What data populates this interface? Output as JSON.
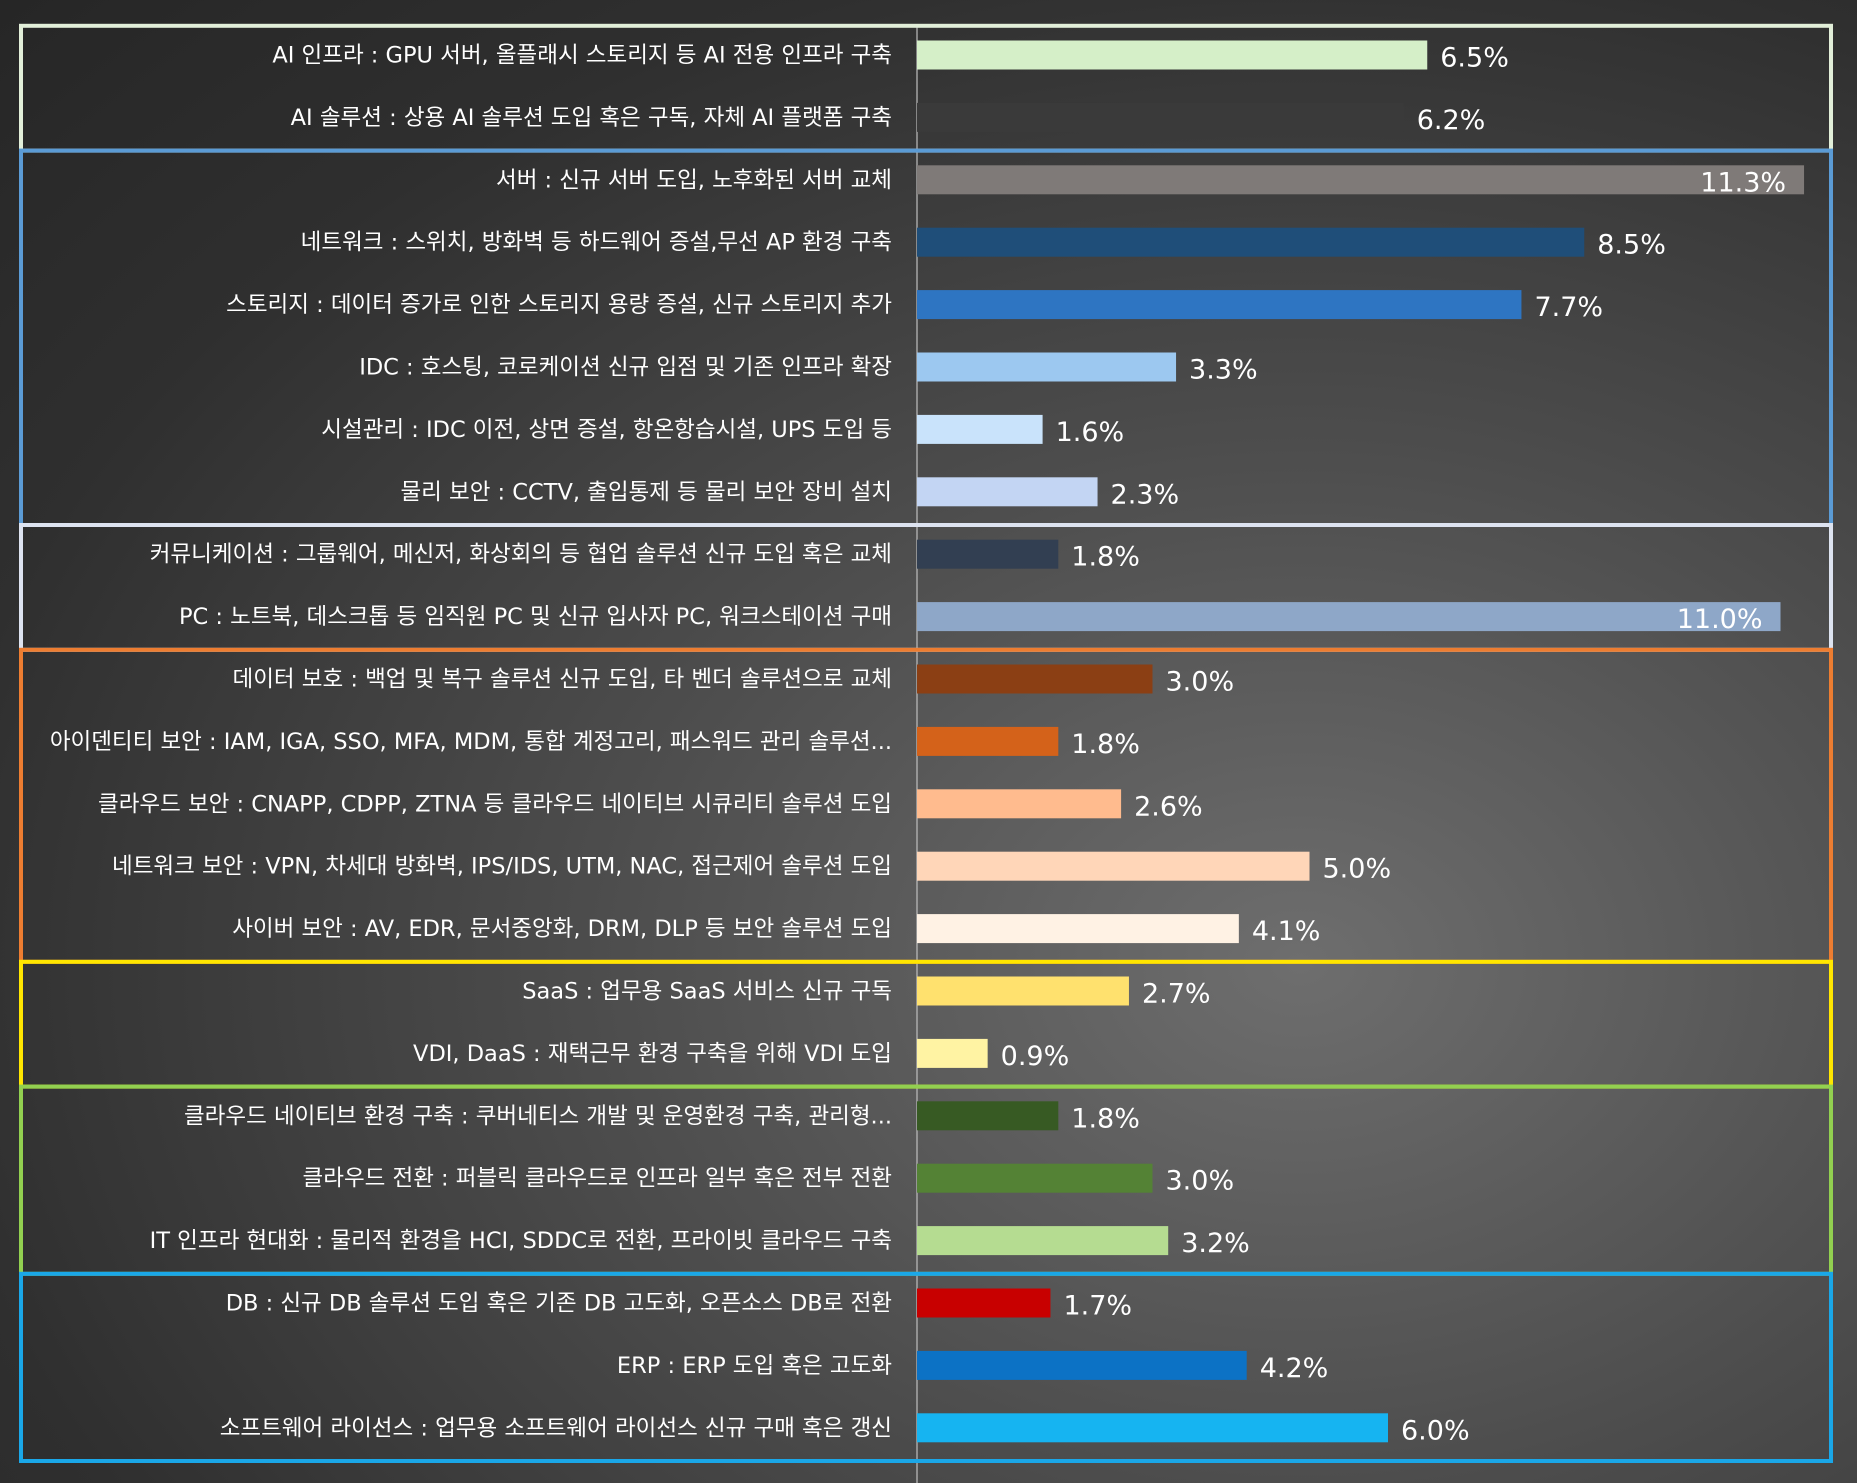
{
  "chart_data": {
    "type": "bar",
    "orientation": "horizontal",
    "value_suffix": "%",
    "xlim": [
      0,
      11.3
    ],
    "grid": false,
    "legend": "none",
    "categories": [
      "AI 인프라 : GPU 서버, 올플래시 스토리지 등 AI 전용 인프라 구축",
      "AI 솔루션 : 상용 AI 솔루션 도입 혹은 구독, 자체 AI 플랫폼 구축",
      "서버 : 신규 서버 도입, 노후화된 서버 교체",
      "네트워크 : 스위치, 방화벽 등 하드웨어 증설,무선 AP 환경 구축",
      "스토리지 : 데이터 증가로 인한 스토리지 용량 증설, 신규 스토리지 추가",
      "IDC : 호스팅, 코로케이션 신규 입점 및 기존 인프라 확장",
      "시설관리 : IDC 이전, 상면 증설, 항온항습시설, UPS 도입 등",
      "물리 보안 : CCTV, 출입통제 등 물리 보안 장비 설치",
      "커뮤니케이션 : 그룹웨어, 메신저, 화상회의 등 협업 솔루션 신규 도입 혹은 교체",
      "PC : 노트북, 데스크톱 등 임직원 PC 및 신규 입사자 PC, 워크스테이션 구매",
      "데이터 보호 : 백업 및 복구 솔루션 신규 도입, 타 벤더 솔루션으로 교체",
      "아이덴티티 보안 : IAM, IGA, SSO, MFA, MDM, 통합 계정고리, 패스워드 관리 솔루션...",
      "클라우드 보안 : CNAPP, CDPP, ZTNA 등 클라우드 네이티브 시큐리티 솔루션 도입",
      "네트워크 보안 : VPN, 차세대 방화벽, IPS/IDS, UTM, NAC, 접근제어 솔루션 도입",
      "사이버 보안 : AV, EDR, 문서중앙화, DRM, DLP 등 보안 솔루션 도입",
      "SaaS : 업무용 SaaS 서비스 신규 구독",
      "VDI, DaaS : 재택근무 환경 구축을 위해 VDI 도입",
      "클라우드 네이티브 환경 구축 : 쿠버네티스 개발 및 운영환경 구축, 관리형...",
      "클라우드 전환 : 퍼블릭 클라우드로 인프라 일부 혹은 전부 전환",
      "IT 인프라 현대화 : 물리적 환경을 HCI, SDDC로 전환, 프라이빗 클라우드 구축",
      "DB : 신규 DB 솔루션 도입 혹은 기존 DB 고도화, 오픈소스 DB로 전환",
      "ERP : ERP 도입 혹은 고도화",
      "소프트웨어 라이선스 : 업무용 소프트웨어 라이선스 신규 구매 혹은 갱신"
    ],
    "values": [
      6.5,
      6.2,
      11.3,
      8.5,
      7.7,
      3.3,
      1.6,
      2.3,
      1.8,
      11.0,
      3.0,
      1.8,
      2.6,
      5.0,
      4.1,
      2.7,
      0.9,
      1.8,
      3.0,
      3.2,
      1.7,
      4.2,
      6.0
    ],
    "value_labels": [
      "6.5%",
      "6.2%",
      "11.3%",
      "8.5%",
      "7.7%",
      "3.3%",
      "1.6%",
      "2.3%",
      "1.8%",
      "11.0%",
      "3.0%",
      "1.8%",
      "2.6%",
      "5.0%",
      "4.1%",
      "2.7%",
      "0.9%",
      "1.8%",
      "3.0%",
      "3.2%",
      "1.7%",
      "4.2%",
      "6.0%"
    ],
    "bar_colors": [
      "#d5efc8",
      "#3a3a3a",
      "#7f7a78",
      "#1f4e79",
      "#2e75c2",
      "#9cc8f0",
      "#c9e3fb",
      "#c3d5f3",
      "#323f52",
      "#8ea7c8",
      "#8b3f14",
      "#d4621a",
      "#ffbb8e",
      "#ffd6b8",
      "#fff2e4",
      "#ffe16e",
      "#fff3a3",
      "#375a23",
      "#548235",
      "#b5dc91",
      "#c80000",
      "#0c72c5",
      "#16b4f1"
    ],
    "groups": [
      {
        "start": 0,
        "end": 1,
        "color": "#e2efd9"
      },
      {
        "start": 2,
        "end": 7,
        "color": "#5b9bd5"
      },
      {
        "start": 8,
        "end": 9,
        "color": "#dde3f0"
      },
      {
        "start": 10,
        "end": 14,
        "color": "#ed7d31"
      },
      {
        "start": 15,
        "end": 16,
        "color": "#ffe600"
      },
      {
        "start": 17,
        "end": 19,
        "color": "#92d050"
      },
      {
        "start": 20,
        "end": 22,
        "color": "#1aa7e8"
      }
    ]
  }
}
